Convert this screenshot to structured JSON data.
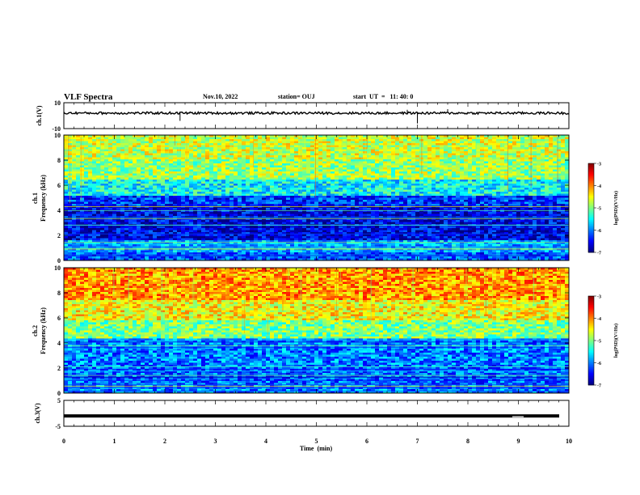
{
  "header": {
    "title": "VLF Spectra",
    "date": "Nov.10, 2022",
    "station": "station= OUJ",
    "start": "start  UT  =   11: 40: 0"
  },
  "chart_data": [
    {
      "type": "line",
      "panel": "ch1-waveform",
      "ylabel": "ch.1(V)",
      "ylim": [
        -10,
        10
      ],
      "yticks": [
        "10",
        "-10"
      ],
      "values_description": "noisy trace centered near +2 V with amplitude about ±1 V"
    },
    {
      "type": "heatmap",
      "panel": "ch1-spectrogram",
      "ylabel": "Frequency (kHz)",
      "channel_label": "ch.1",
      "ylim": [
        0,
        10
      ],
      "yticks": [
        "0",
        "2",
        "4",
        "6",
        "8",
        "10"
      ],
      "colorbar": {
        "label": "log(PSD)(V²/Hz)",
        "range": [
          -7,
          -3
        ],
        "ticks": [
          "-3",
          "-4",
          "-5",
          "-6",
          "-7"
        ]
      },
      "bands": [
        {
          "from": 0,
          "to": 0.6,
          "level": -6.2
        },
        {
          "from": 0.6,
          "to": 1.6,
          "level": -5.8
        },
        {
          "from": 1.6,
          "to": 4.4,
          "level": -6.6
        },
        {
          "from": 4.4,
          "to": 5.2,
          "level": -6.3
        },
        {
          "from": 5.2,
          "to": 6.5,
          "level": -5.5
        },
        {
          "from": 6.5,
          "to": 8.0,
          "level": -4.9
        },
        {
          "from": 8.0,
          "to": 10.0,
          "level": -4.7
        }
      ]
    },
    {
      "type": "heatmap",
      "panel": "ch2-spectrogram",
      "ylabel": "Frequency (kHz)",
      "channel_label": "ch.2",
      "ylim": [
        0,
        10
      ],
      "yticks": [
        "0",
        "2",
        "4",
        "6",
        "8",
        "10"
      ],
      "colorbar": {
        "label": "log(PSD)(V²/Hz)",
        "range": [
          -7,
          -3
        ],
        "ticks": [
          "-3",
          "-4",
          "-5",
          "-6",
          "-7"
        ]
      },
      "bands": [
        {
          "from": 0,
          "to": 0.6,
          "level": -6.0
        },
        {
          "from": 0.6,
          "to": 2.2,
          "level": -6.1
        },
        {
          "from": 2.2,
          "to": 4.4,
          "level": -6.0
        },
        {
          "from": 4.4,
          "to": 5.8,
          "level": -5.0
        },
        {
          "from": 5.8,
          "to": 7.5,
          "level": -4.5
        },
        {
          "from": 7.5,
          "to": 10.0,
          "level": -4.1
        }
      ]
    },
    {
      "type": "line",
      "panel": "ch3-waveform",
      "ylabel": "ch.3(V)",
      "ylim": [
        -5,
        5
      ],
      "yticks": [
        "5",
        "-5"
      ],
      "values_description": "constant trace near -1 V"
    }
  ],
  "x_axis": {
    "label": "Time  (min)",
    "range": [
      0,
      10
    ],
    "ticks": [
      "0",
      "1",
      "2",
      "3",
      "4",
      "5",
      "6",
      "7",
      "8",
      "9",
      "10"
    ]
  }
}
